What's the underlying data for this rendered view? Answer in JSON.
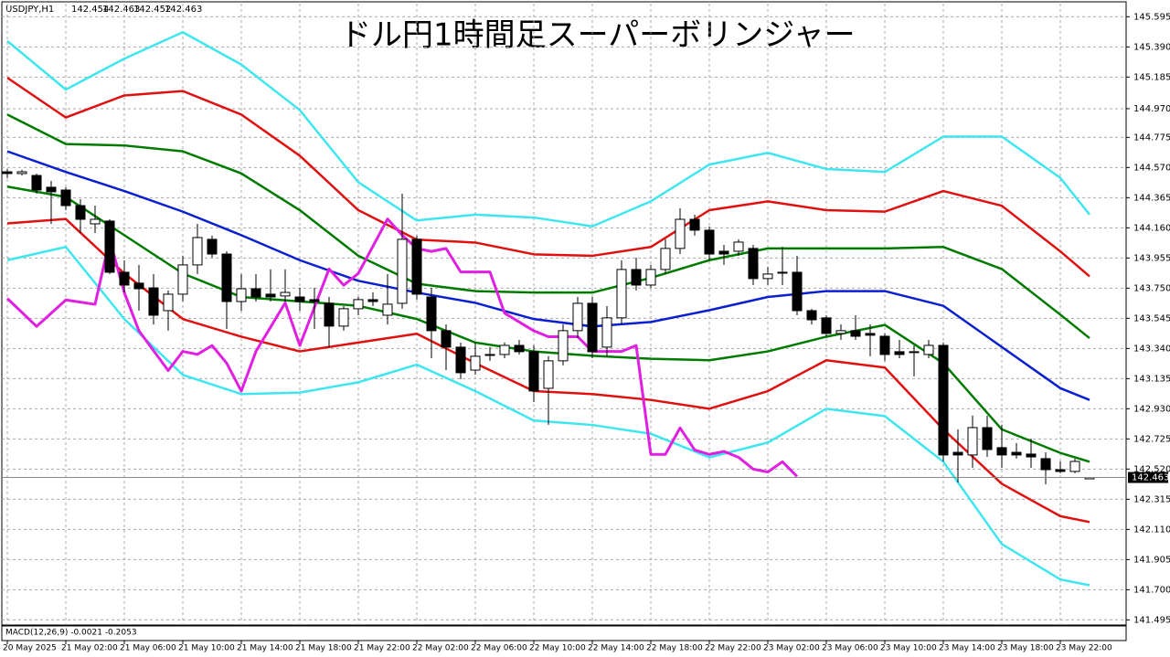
{
  "chart_data": {
    "type": "candlestick",
    "title": "ドル円1時間足スーパーボリンジャー",
    "symbol": "USDJPY,H1",
    "annotations": [
      "MACD(12,26,9) -0.0021 -0.2053"
    ],
    "categories": [
      "20 May 2025",
      null,
      null,
      null,
      "21 May 02:00",
      null,
      null,
      null,
      "21 May 06:00",
      null,
      null,
      null,
      "21 May 10:00",
      null,
      null,
      null,
      "21 May 14:00",
      null,
      null,
      null,
      "21 May 18:00",
      null,
      null,
      null,
      "21 May 22:00",
      null,
      null,
      null,
      "22 May 02:00",
      null,
      null,
      null,
      "22 May 06:00",
      null,
      null,
      null,
      "22 May 10:00",
      null,
      null,
      null,
      "22 May 14:00",
      null,
      null,
      null,
      "22 May 18:00",
      null,
      null,
      null,
      "22 May 22:00",
      null,
      null,
      null,
      "23 May 02:00",
      null,
      null,
      null,
      "23 May 06:00",
      null,
      null,
      null,
      "23 May 10:00",
      null,
      null,
      null,
      "23 May 14:00",
      null,
      null,
      null,
      "23 May 18:00",
      null,
      null,
      null,
      "23 May 22:00",
      null,
      null
    ],
    "open": [
      144.541,
      144.529,
      144.516,
      144.436,
      144.417,
      144.311,
      144.187,
      144.206,
      143.858,
      143.784,
      143.752,
      143.597,
      143.709,
      143.908,
      144.082,
      143.982,
      143.659,
      143.746,
      143.709,
      143.697,
      143.69,
      143.672,
      143.647,
      143.492,
      143.61,
      143.672,
      143.566,
      143.647,
      144.082,
      143.69,
      143.461,
      143.349,
      143.193,
      143.299,
      143.299,
      143.361,
      143.318,
      143.069,
      143.256,
      143.461,
      143.647,
      143.349,
      143.548,
      143.877,
      143.771,
      143.877,
      144.02,
      144.218,
      144.144,
      144.001,
      144.001,
      144.02,
      143.815,
      143.858,
      143.858,
      143.597,
      143.548,
      143.442,
      143.461,
      143.442,
      143.423,
      143.318,
      143.318,
      143.299,
      143.361,
      142.634,
      142.616,
      142.802,
      142.666,
      142.634,
      142.622,
      142.591,
      142.516,
      142.504,
      142.454
    ],
    "high": [
      144.56,
      144.554,
      144.529,
      144.479,
      144.436,
      144.355,
      144.311,
      144.218,
      143.939,
      143.908,
      143.846,
      143.734,
      143.97,
      144.187,
      144.107,
      144.001,
      143.846,
      143.846,
      143.877,
      143.877,
      143.752,
      143.752,
      143.69,
      143.628,
      143.69,
      143.721,
      143.846,
      144.392,
      144.107,
      143.752,
      143.504,
      143.38,
      143.38,
      143.349,
      143.38,
      143.398,
      143.361,
      143.287,
      143.504,
      143.69,
      143.69,
      143.628,
      143.939,
      143.957,
      143.908,
      144.082,
      144.293,
      144.249,
      144.169,
      144.044,
      144.082,
      144.044,
      143.895,
      144.032,
      143.97,
      143.61,
      143.566,
      143.504,
      143.566,
      143.504,
      143.442,
      143.398,
      143.361,
      143.398,
      143.38,
      142.79,
      142.883,
      142.883,
      142.821,
      142.697,
      142.728,
      142.634,
      142.572,
      142.591,
      142.463
    ],
    "low": [
      144.498,
      144.516,
      144.392,
      144.187,
      144.28,
      144.125,
      144.125,
      143.846,
      143.721,
      143.597,
      143.504,
      143.461,
      143.659,
      143.846,
      143.957,
      143.473,
      143.597,
      143.659,
      143.659,
      143.659,
      143.597,
      143.473,
      143.349,
      143.461,
      143.566,
      143.628,
      143.504,
      143.61,
      143.672,
      143.274,
      143.193,
      143.131,
      143.162,
      143.256,
      143.274,
      143.299,
      142.976,
      142.821,
      143.225,
      143.411,
      143.274,
      143.287,
      143.504,
      143.734,
      143.752,
      143.846,
      143.982,
      144.107,
      143.939,
      143.908,
      143.97,
      143.771,
      143.771,
      143.771,
      143.566,
      143.504,
      143.423,
      143.398,
      143.398,
      143.287,
      143.256,
      143.274,
      143.15,
      143.274,
      142.572,
      142.429,
      142.529,
      142.603,
      142.529,
      142.591,
      142.529,
      142.417,
      142.492,
      142.492,
      142.452
    ],
    "close": [
      144.529,
      144.541,
      144.417,
      144.405,
      144.311,
      144.218,
      144.218,
      143.858,
      143.771,
      143.746,
      143.566,
      143.709,
      143.908,
      144.094,
      143.982,
      143.659,
      143.746,
      143.69,
      143.69,
      143.721,
      143.659,
      143.659,
      143.492,
      143.61,
      143.672,
      143.659,
      143.641,
      144.082,
      143.709,
      143.461,
      143.349,
      143.175,
      143.287,
      143.299,
      143.361,
      143.318,
      143.051,
      143.256,
      143.461,
      143.647,
      143.318,
      143.548,
      143.877,
      143.771,
      143.877,
      144.02,
      144.218,
      144.144,
      143.982,
      143.982,
      144.063,
      143.815,
      143.846,
      143.858,
      143.597,
      143.535,
      143.442,
      143.461,
      143.423,
      143.43,
      143.299,
      143.299,
      143.318,
      143.361,
      142.616,
      142.616,
      142.802,
      142.653,
      142.616,
      142.616,
      142.603,
      142.516,
      142.504,
      142.572,
      142.463
    ],
    "ylim": [
      141.46,
      145.684
    ],
    "yticks": [
      {
        "value": 145.595,
        "label": "145.595"
      },
      {
        "value": 145.39,
        "label": "145.390"
      },
      145.185,
      {
        "value": 144.97,
        "label": "144.970"
      },
      144.775,
      {
        "value": 144.57,
        "label": "144.570"
      },
      144.365,
      {
        "value": 144.16,
        "label": "144.160"
      },
      143.955,
      {
        "value": 143.75,
        "label": "143.750"
      },
      143.545,
      {
        "value": 143.34,
        "label": "143.340"
      },
      143.135,
      {
        "value": 142.93,
        "label": "142.930"
      },
      142.725,
      {
        "value": 142.52,
        "label": "142.520"
      },
      142.315,
      {
        "value": 142.11,
        "label": "142.110"
      },
      141.905,
      {
        "value": 141.7,
        "label": "141.700"
      },
      141.495
    ],
    "grid": true,
    "series": [
      {
        "color": "#3fe6f0",
        "x": [
          0,
          4,
          8,
          12,
          16,
          20,
          24,
          28,
          32,
          36,
          40,
          44,
          48,
          52,
          56,
          60,
          64,
          68,
          72,
          74
        ],
        "values": [
          145.43,
          145.1,
          145.31,
          145.49,
          145.27,
          144.96,
          144.47,
          144.21,
          144.25,
          144.23,
          144.17,
          144.34,
          144.59,
          144.67,
          144.56,
          144.54,
          144.78,
          144.78,
          144.5,
          144.25
        ]
      },
      {
        "color": "#e01010",
        "x": [
          0,
          4,
          8,
          12,
          16,
          20,
          24,
          28,
          32,
          36,
          40,
          44,
          48,
          52,
          56,
          60,
          64,
          68,
          72,
          74
        ],
        "values": [
          145.18,
          144.91,
          145.06,
          145.09,
          144.93,
          144.65,
          144.28,
          144.08,
          144.06,
          143.98,
          143.97,
          144.03,
          144.28,
          144.34,
          144.28,
          144.27,
          144.41,
          144.31,
          144.0,
          143.83
        ]
      },
      {
        "color": "#007a00",
        "x": [
          0,
          4,
          8,
          12,
          16,
          20,
          24,
          28,
          32,
          36,
          40,
          44,
          48,
          52,
          56,
          60,
          64,
          68,
          72,
          74
        ],
        "values": [
          144.93,
          144.73,
          144.72,
          144.68,
          144.53,
          144.28,
          143.97,
          143.78,
          143.73,
          143.72,
          143.72,
          143.82,
          143.94,
          144.02,
          144.02,
          144.02,
          144.03,
          143.88,
          143.57,
          143.41
        ]
      },
      {
        "color": "#0a1fd0",
        "x": [
          0,
          4,
          8,
          12,
          16,
          20,
          24,
          28,
          32,
          36,
          40,
          44,
          48,
          52,
          56,
          60,
          64,
          68,
          72,
          74
        ],
        "values": [
          144.68,
          144.54,
          144.41,
          144.27,
          144.11,
          143.94,
          143.8,
          143.72,
          143.65,
          143.54,
          143.49,
          143.52,
          143.6,
          143.69,
          143.73,
          143.73,
          143.63,
          143.35,
          143.07,
          142.99
        ]
      },
      {
        "color": "#007a00",
        "x": [
          0,
          4,
          8,
          12,
          16,
          20,
          24,
          28,
          32,
          36,
          40,
          44,
          48,
          52,
          56,
          60,
          64,
          68,
          72,
          74
        ],
        "values": [
          144.44,
          144.37,
          144.11,
          143.85,
          143.69,
          143.66,
          143.63,
          143.54,
          143.38,
          143.32,
          143.29,
          143.27,
          143.26,
          143.32,
          143.42,
          143.5,
          143.24,
          142.79,
          142.63,
          142.57
        ]
      },
      {
        "color": "#e01010",
        "x": [
          0,
          4,
          8,
          12,
          16,
          20,
          24,
          28,
          32,
          36,
          40,
          44,
          48,
          52,
          56,
          60,
          64,
          68,
          72,
          74
        ],
        "values": [
          144.19,
          144.22,
          143.85,
          143.54,
          143.42,
          143.32,
          143.38,
          143.44,
          143.24,
          143.05,
          143.03,
          142.99,
          142.93,
          143.05,
          143.26,
          143.21,
          142.79,
          142.42,
          142.2,
          142.16
        ]
      },
      {
        "color": "#3fe6f0",
        "x": [
          0,
          4,
          8,
          12,
          16,
          20,
          24,
          28,
          32,
          36,
          40,
          44,
          48,
          52,
          56,
          60,
          64,
          68,
          72,
          74
        ],
        "values": [
          143.94,
          144.03,
          143.54,
          143.16,
          143.03,
          143.04,
          143.11,
          143.23,
          143.05,
          142.85,
          142.82,
          142.76,
          142.6,
          142.7,
          142.93,
          142.88,
          142.57,
          142.01,
          141.77,
          141.73
        ]
      },
      {
        "color": "#e020e0",
        "x": [
          0,
          2,
          4,
          6,
          7,
          8,
          9,
          11,
          12,
          13,
          14,
          15,
          16,
          17,
          19,
          20,
          22,
          23,
          24,
          26,
          27,
          28,
          29,
          30,
          31,
          33,
          34,
          36,
          37,
          39,
          40,
          42,
          43,
          44,
          45,
          46,
          47,
          48,
          49,
          50,
          51,
          52,
          53,
          54
        ],
        "values": [
          143.68,
          143.49,
          143.67,
          143.64,
          144.08,
          143.72,
          143.46,
          143.19,
          143.32,
          143.3,
          143.36,
          143.24,
          143.05,
          143.32,
          143.65,
          143.36,
          143.88,
          143.77,
          143.85,
          144.22,
          144.11,
          144.02,
          144.0,
          144.02,
          143.86,
          143.86,
          143.58,
          143.46,
          143.42,
          143.42,
          143.32,
          143.32,
          143.36,
          142.62,
          142.62,
          142.8,
          142.65,
          142.62,
          142.64,
          142.6,
          142.52,
          142.5,
          142.57,
          142.47
        ]
      }
    ]
  }
}
